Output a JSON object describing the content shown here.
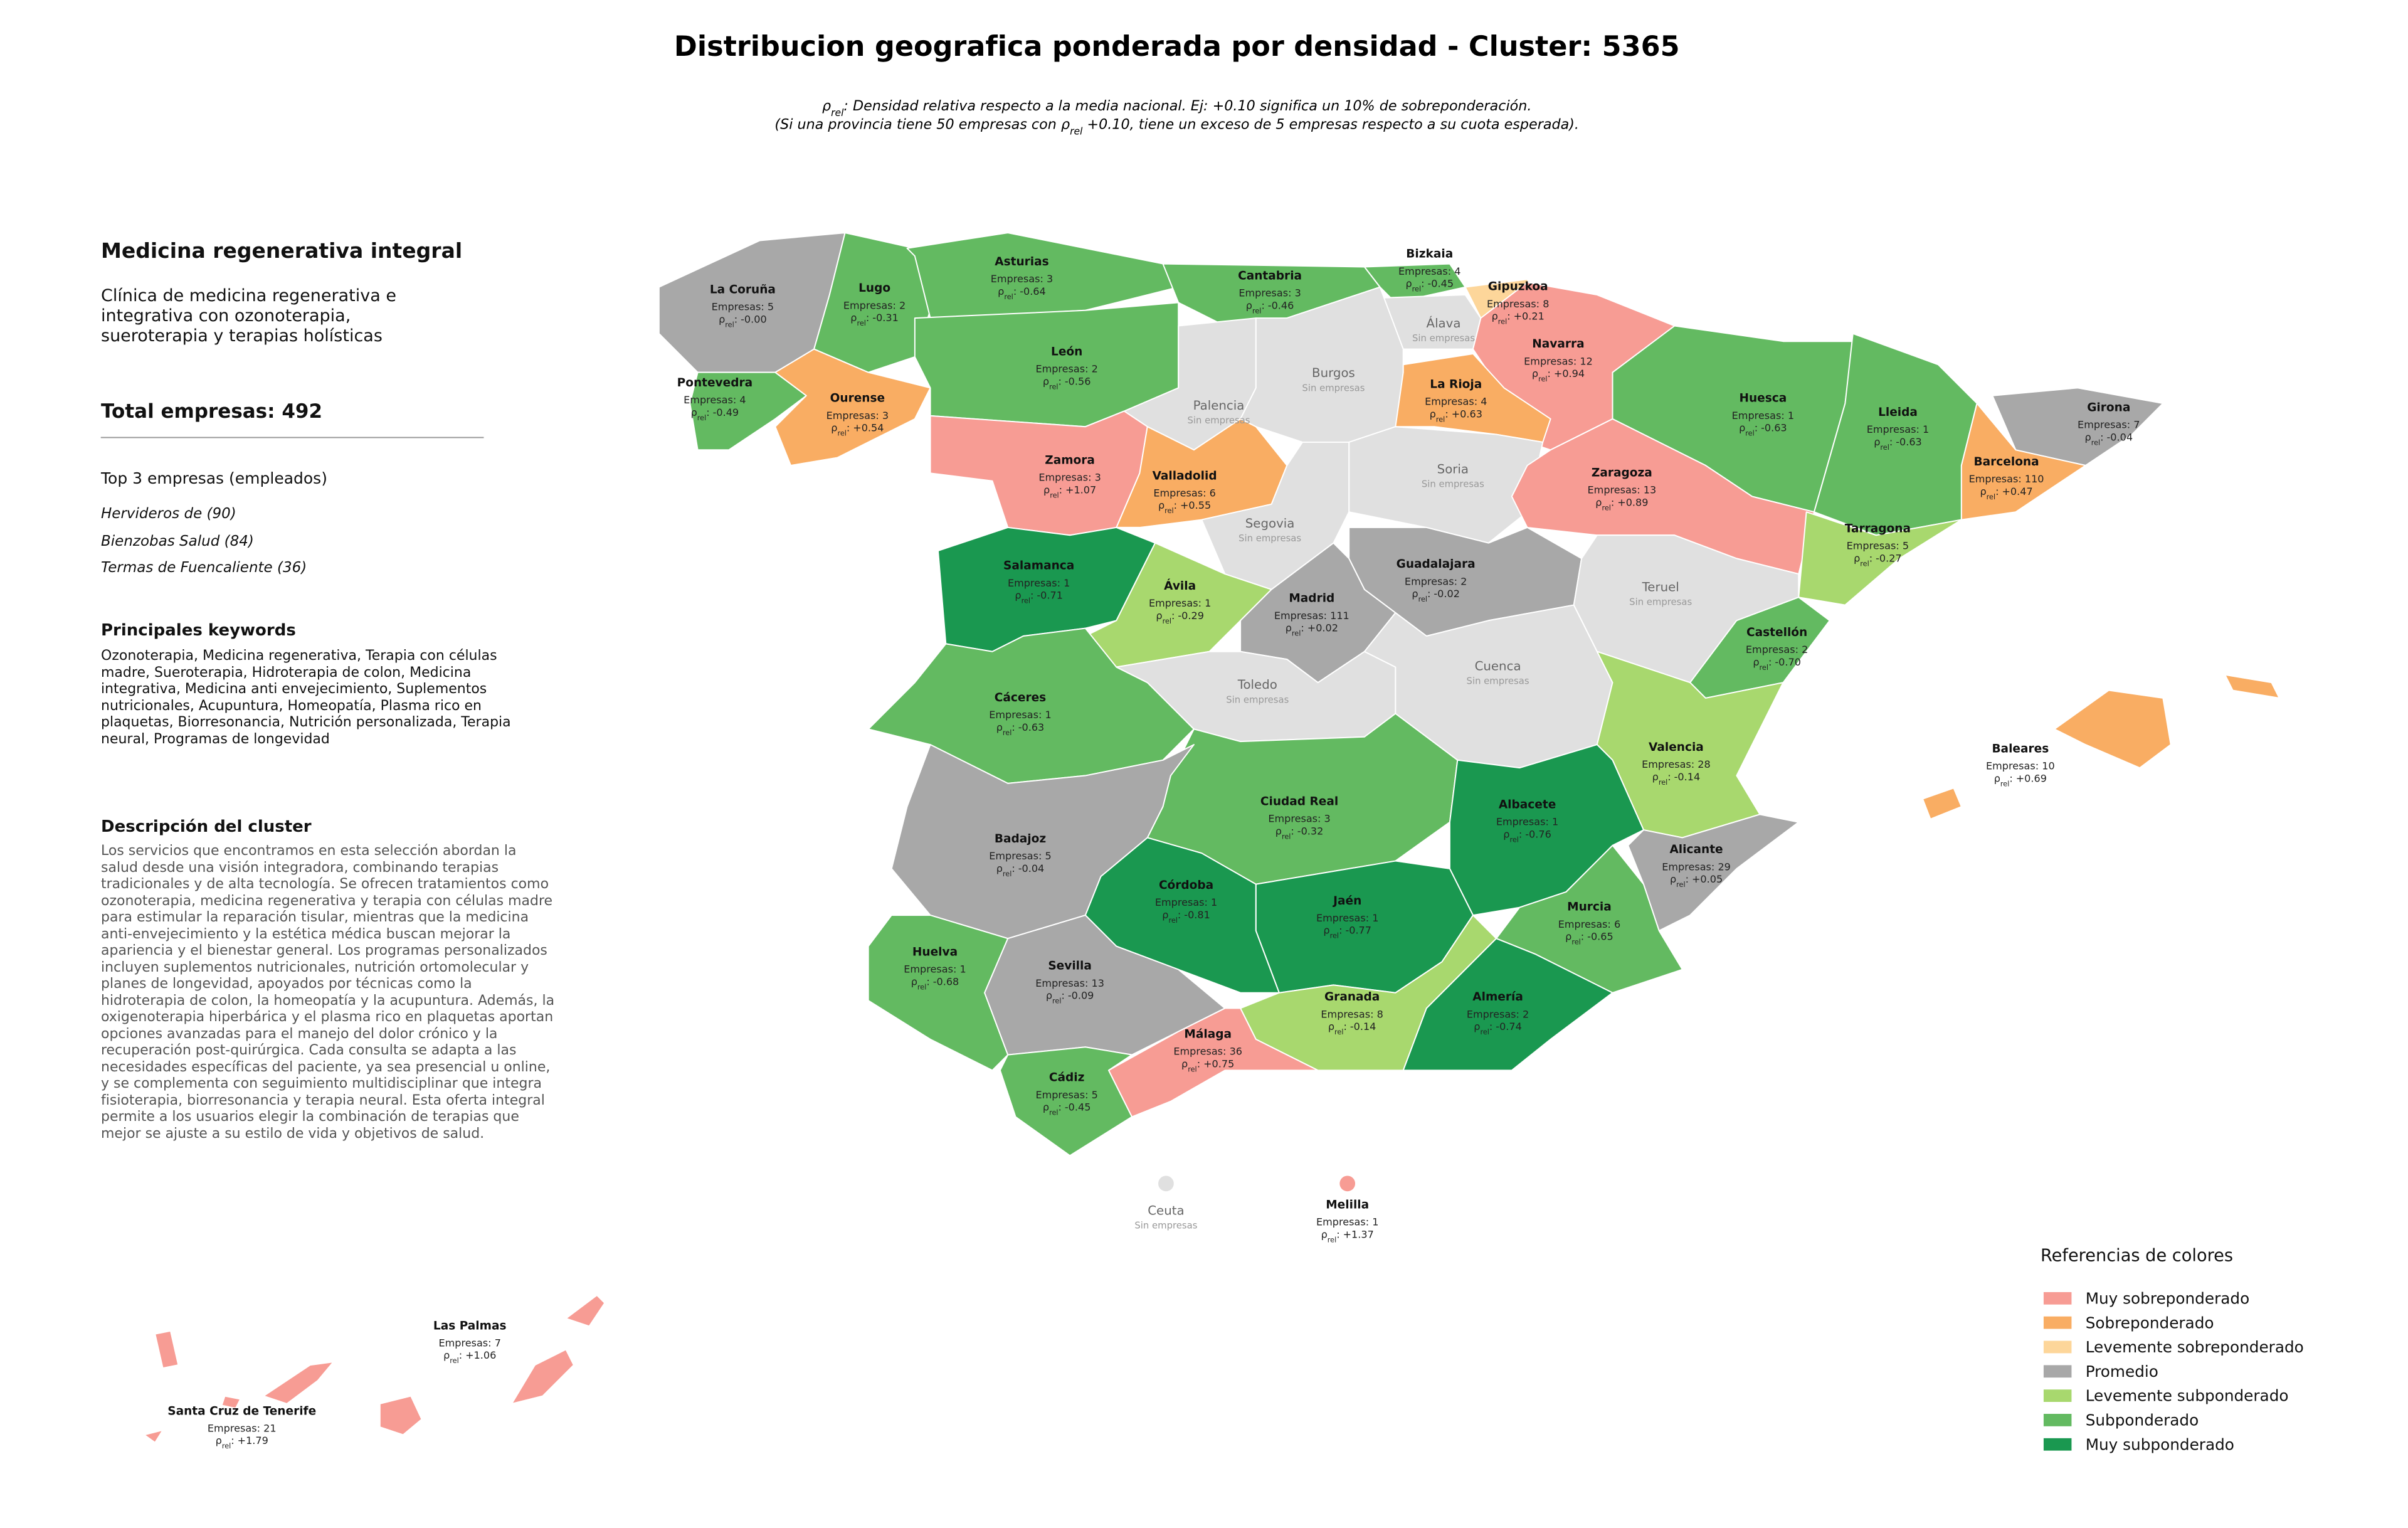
{
  "title": "Distribucion geografica ponderada por densidad - Cluster: 5365",
  "rho_symbol": "ρ",
  "rho_sub": "rel",
  "rho_sep": ":",
  "subtitle": {
    "line1_after": ": Densidad relativa respecto a la media nacional. Ej: +0.10 significa un 10% de sobreponderación.",
    "line2_before": "(Si una provincia tiene 50 empresas con ",
    "line2_after": " +0.10, tiene un exceso de 5 empresas respecto a su cuota esperada)."
  },
  "panel": {
    "heading": "Medicina regenerativa integral",
    "description": "Clínica de medicina regenerativa e integrativa con ozonoterapia, sueroterapia y terapias holísticas",
    "total": "Total empresas: 492",
    "top_title": "Top 3 empresas (empleados)",
    "top": [
      "Hervideros de (90)",
      "Bienzobas Salud (84)",
      "Termas de Fuencaliente (36)"
    ],
    "keywords_title": "Principales keywords",
    "keywords": "Ozonoterapia, Medicina regenerativa, Terapia con células madre, Sueroterapia, Hidroterapia de colon, Medicina integrativa, Medicina anti envejecimiento, Suplementos nutricionales, Acupuntura, Homeopatía, Plasma rico en plaquetas, Biorresonancia, Nutrición personalizada, Terapia neural, Programas de longevidad",
    "cluster_title": "Descripción del cluster",
    "cluster_text": "Los servicios que encontramos en esta selección abordan la salud desde una visión integradora, combinando terapias tradicionales y de alta tecnología. Se ofrecen tratamientos como ozonoterapia, medicina regenerativa y terapia con células madre para estimular la reparación tisular, mientras que la medicina anti-envejecimiento y la estética médica buscan mejorar la apariencia y el bienestar general. Los programas personalizados incluyen suplementos nutricionales, nutrición ortomolecular y planes de longevidad, apoyados por técnicas como la hidroterapia de colon, la homeopatía y la acupuntura. Además, la oxigenoterapia hiperbárica y el plasma rico en plaquetas aportan opciones avanzadas para el manejo del dolor crónico y la recuperación post-quirúrgica. Cada consulta se adapta a las necesidades específicas del paciente, ya sea presencial u online, y se complementa con seguimiento multidisciplinar que integra fisioterapia, biorresonancia y terapia neural. Esta oferta integral permite a los usuarios elegir la combinación de terapias que mejor se ajuste a su estilo de vida y objetivos de salud."
  },
  "legend": {
    "title": "Referencias de colores",
    "items": [
      {
        "name": "Muy sobreponderado",
        "color": "#f79c94"
      },
      {
        "name": "Sobreponderado",
        "color": "#f9ad63"
      },
      {
        "name": "Levemente sobreponderado",
        "color": "#fdd69a"
      },
      {
        "name": "Promedio",
        "color": "#a8a8a8"
      },
      {
        "name": "Levemente subponderado",
        "color": "#a8d86e"
      },
      {
        "name": "Subponderado",
        "color": "#63ba61"
      },
      {
        "name": "Muy subponderado",
        "color": "#1a9850"
      }
    ]
  },
  "provinces": [
    {
      "name": "La Coruña",
      "companies": "Empresas: 5",
      "density": "-0.00",
      "color": "#a8a8a8"
    },
    {
      "name": "Lugo",
      "companies": "Empresas: 2",
      "density": "-0.31",
      "color": "#63ba61"
    },
    {
      "name": "Asturias",
      "companies": "Empresas: 3",
      "density": "-0.64",
      "color": "#63ba61"
    },
    {
      "name": "Cantabria",
      "companies": "Empresas: 3",
      "density": "-0.46",
      "color": "#63ba61"
    },
    {
      "name": "Bizkaia",
      "companies": "Empresas: 4",
      "density": "-0.45",
      "color": "#63ba61"
    },
    {
      "name": "Gipuzkoa",
      "companies": "Empresas: 8",
      "density": "+0.21",
      "color": "#fdd69a"
    },
    {
      "name": "Álava",
      "companies": "Sin empresas",
      "color": "#e0e0e0"
    },
    {
      "name": "Navarra",
      "companies": "Empresas: 12",
      "density": "+0.94",
      "color": "#f79c94"
    },
    {
      "name": "Pontevedra",
      "companies": "Empresas: 4",
      "density": "-0.49",
      "color": "#63ba61"
    },
    {
      "name": "Ourense",
      "companies": "Empresas: 3",
      "density": "+0.54",
      "color": "#f9ad63"
    },
    {
      "name": "León",
      "companies": "Empresas: 2",
      "density": "-0.56",
      "color": "#63ba61"
    },
    {
      "name": "Palencia",
      "companies": "Sin empresas",
      "color": "#e0e0e0"
    },
    {
      "name": "Burgos",
      "companies": "Sin empresas",
      "color": "#e0e0e0"
    },
    {
      "name": "La Rioja",
      "companies": "Empresas: 4",
      "density": "+0.63",
      "color": "#f9ad63"
    },
    {
      "name": "Huesca",
      "companies": "Empresas: 1",
      "density": "-0.63",
      "color": "#63ba61"
    },
    {
      "name": "Lleida",
      "companies": "Empresas: 1",
      "density": "-0.63",
      "color": "#63ba61"
    },
    {
      "name": "Girona",
      "companies": "Empresas: 7",
      "density": "-0.04",
      "color": "#a8a8a8"
    },
    {
      "name": "Zamora",
      "companies": "Empresas: 3",
      "density": "+1.07",
      "color": "#f79c94"
    },
    {
      "name": "Valladolid",
      "companies": "Empresas: 6",
      "density": "+0.55",
      "color": "#f9ad63"
    },
    {
      "name": "Soria",
      "companies": "Sin empresas",
      "color": "#e0e0e0"
    },
    {
      "name": "Zaragoza",
      "companies": "Empresas: 13",
      "density": "+0.89",
      "color": "#f79c94"
    },
    {
      "name": "Barcelona",
      "companies": "Empresas: 110",
      "density": "+0.47",
      "color": "#f9ad63"
    },
    {
      "name": "Segovia",
      "companies": "Sin empresas",
      "color": "#e0e0e0"
    },
    {
      "name": "Tarragona",
      "companies": "Empresas: 5",
      "density": "-0.27",
      "color": "#a8d86e"
    },
    {
      "name": "Salamanca",
      "companies": "Empresas: 1",
      "density": "-0.71",
      "color": "#1a9850"
    },
    {
      "name": "Guadalajara",
      "companies": "Empresas: 2",
      "density": "-0.02",
      "color": "#a8a8a8"
    },
    {
      "name": "Ávila",
      "companies": "Empresas: 1",
      "density": "-0.29",
      "color": "#a8d86e"
    },
    {
      "name": "Madrid",
      "companies": "Empresas: 111",
      "density": "+0.02",
      "color": "#a8a8a8"
    },
    {
      "name": "Teruel",
      "companies": "Sin empresas",
      "color": "#e0e0e0"
    },
    {
      "name": "Castellón",
      "companies": "Empresas: 2",
      "density": "-0.70",
      "color": "#63ba61"
    },
    {
      "name": "Cáceres",
      "companies": "Empresas: 1",
      "density": "-0.63",
      "color": "#63ba61"
    },
    {
      "name": "Toledo",
      "companies": "Sin empresas",
      "color": "#e0e0e0"
    },
    {
      "name": "Cuenca",
      "companies": "Sin empresas",
      "color": "#e0e0e0"
    },
    {
      "name": "Valencia",
      "companies": "Empresas: 28",
      "density": "-0.14",
      "color": "#a8d86e"
    },
    {
      "name": "Baleares",
      "companies": "Empresas: 10",
      "density": "+0.69",
      "color": "#f9ad63"
    },
    {
      "name": "Ciudad Real",
      "companies": "Empresas: 3",
      "density": "-0.32",
      "color": "#63ba61"
    },
    {
      "name": "Albacete",
      "companies": "Empresas: 1",
      "density": "-0.76",
      "color": "#1a9850"
    },
    {
      "name": "Badajoz",
      "companies": "Empresas: 5",
      "density": "-0.04",
      "color": "#a8a8a8"
    },
    {
      "name": "Alicante",
      "companies": "Empresas: 29",
      "density": "+0.05",
      "color": "#a8a8a8"
    },
    {
      "name": "Córdoba",
      "companies": "Empresas: 1",
      "density": "-0.81",
      "color": "#1a9850"
    },
    {
      "name": "Jaén",
      "companies": "Empresas: 1",
      "density": "-0.77",
      "color": "#1a9850"
    },
    {
      "name": "Murcia",
      "companies": "Empresas: 6",
      "density": "-0.65",
      "color": "#63ba61"
    },
    {
      "name": "Huelva",
      "companies": "Empresas: 1",
      "density": "-0.68",
      "color": "#63ba61"
    },
    {
      "name": "Sevilla",
      "companies": "Empresas: 13",
      "density": "-0.09",
      "color": "#a8a8a8"
    },
    {
      "name": "Granada",
      "companies": "Empresas: 8",
      "density": "-0.14",
      "color": "#a8d86e"
    },
    {
      "name": "Almería",
      "companies": "Empresas: 2",
      "density": "-0.74",
      "color": "#1a9850"
    },
    {
      "name": "Málaga",
      "companies": "Empresas: 36",
      "density": "+0.75",
      "color": "#f79c94"
    },
    {
      "name": "Cádiz",
      "companies": "Empresas: 5",
      "density": "-0.45",
      "color": "#63ba61"
    },
    {
      "name": "Ceuta",
      "companies": "Sin empresas",
      "color": "#e0e0e0"
    },
    {
      "name": "Melilla",
      "companies": "Empresas: 1",
      "density": "+1.37",
      "color": "#f79c94"
    },
    {
      "name": "Las Palmas",
      "companies": "Empresas: 7",
      "density": "+1.06",
      "color": "#f79c94"
    },
    {
      "name": "Santa Cruz de Tenerife",
      "companies": "Empresas: 21",
      "density": "+1.79",
      "color": "#f79c94"
    }
  ]
}
